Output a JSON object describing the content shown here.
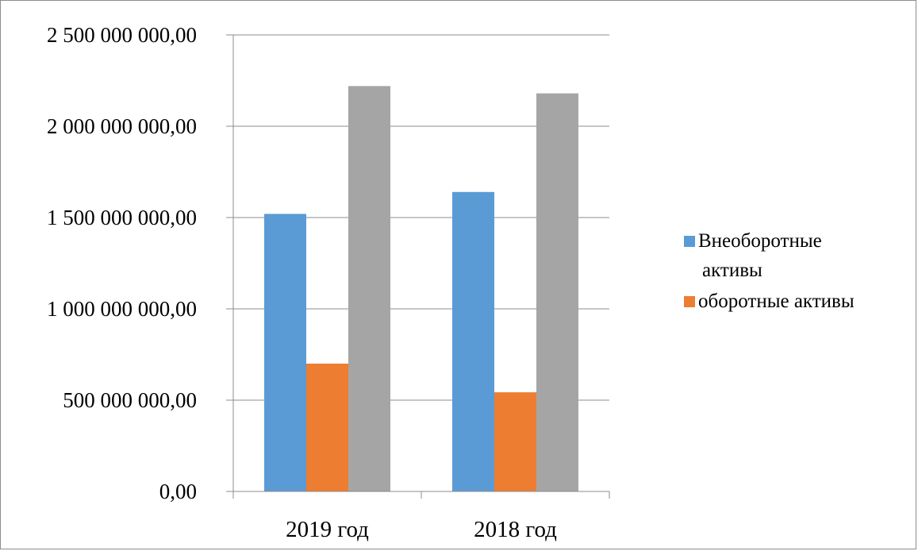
{
  "chart_data": {
    "type": "bar",
    "categories": [
      "2019 год",
      "2018 год"
    ],
    "series": [
      {
        "name": "Внеоборотные активы",
        "legend_lines": [
          "Внеоборотные",
          "активы"
        ],
        "values": [
          1520000000,
          1640000000
        ],
        "color": "#5b9bd5",
        "in_legend": true
      },
      {
        "name": "оборотные активы",
        "legend_lines": [
          "оборотные активы"
        ],
        "values": [
          700000000,
          543000000
        ],
        "color": "#ed7d31",
        "in_legend": true
      },
      {
        "values": [
          2220000000,
          2180000000
        ],
        "color": "#a5a5a5",
        "in_legend": false
      }
    ],
    "y_ticks": [
      {
        "value": 0,
        "label": "0,00"
      },
      {
        "value": 500000000,
        "label": "500 000 000,00"
      },
      {
        "value": 1000000000,
        "label": "1 000 000 000,00"
      },
      {
        "value": 1500000000,
        "label": "1 500 000 000,00"
      },
      {
        "value": 2000000000,
        "label": "2 000 000 000,00"
      },
      {
        "value": 2500000000,
        "label": "2 500 000 000,00"
      }
    ],
    "ylim": [
      0,
      2500000000
    ],
    "grid": true,
    "legend_position": "right",
    "title": "",
    "xlabel": "",
    "ylabel": ""
  }
}
